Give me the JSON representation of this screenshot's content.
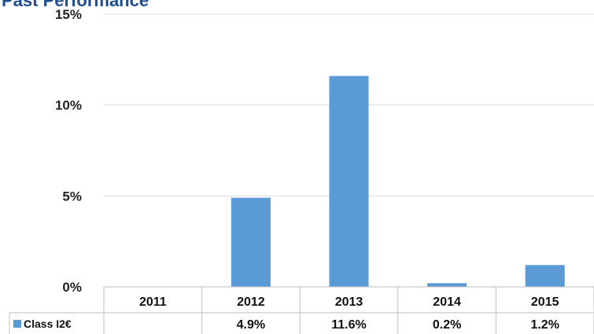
{
  "chart_data": {
    "type": "bar",
    "title": "Past Performance",
    "categories": [
      "2011",
      "2012",
      "2013",
      "2014",
      "2015"
    ],
    "series": [
      {
        "name": "Class I2€",
        "values": [
          null,
          4.9,
          11.6,
          0.2,
          1.2
        ],
        "labels": [
          "",
          "4.9%",
          "11.6%",
          "0.2%",
          "1.2%"
        ],
        "color": "#5b9bd5"
      }
    ],
    "yticks": [
      "0%",
      "5%",
      "10%",
      "15%"
    ],
    "ylim": [
      0,
      15
    ],
    "grid": true,
    "legend": "data-table"
  }
}
